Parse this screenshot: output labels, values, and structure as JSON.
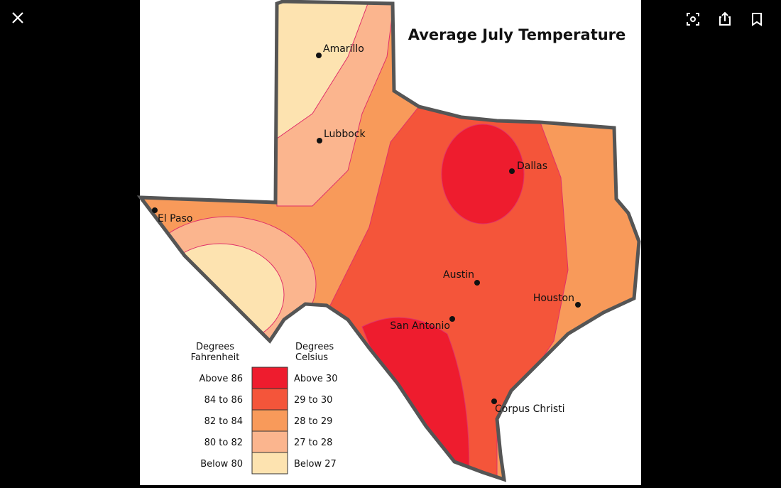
{
  "title": "Average July Temperature",
  "cities": [
    {
      "label": "Amarillo"
    },
    {
      "label": "Lubbock"
    },
    {
      "label": "Dallas"
    },
    {
      "label": "El Paso"
    },
    {
      "label": "Austin"
    },
    {
      "label": "Houston"
    },
    {
      "label": "San Antonio"
    },
    {
      "label": "Corpus Christi"
    }
  ],
  "legend": {
    "fahrenheit_header": [
      "Degrees",
      "Fahrenheit"
    ],
    "celsius_header": [
      "Degrees",
      "Celsius"
    ],
    "rows": [
      {
        "fahrenheit": "Above 86",
        "celsius": "Above 30",
        "color": "#ee1c2e"
      },
      {
        "fahrenheit": "84 to 86",
        "celsius": "29 to 30",
        "color": "#f4553a"
      },
      {
        "fahrenheit": "82 to 84",
        "celsius": "28 to 29",
        "color": "#f89a5a"
      },
      {
        "fahrenheit": "80 to 82",
        "celsius": "27 to 28",
        "color": "#fbb58e"
      },
      {
        "fahrenheit": "Below 80",
        "celsius": "Below 27",
        "color": "#fde3b0"
      }
    ]
  }
}
